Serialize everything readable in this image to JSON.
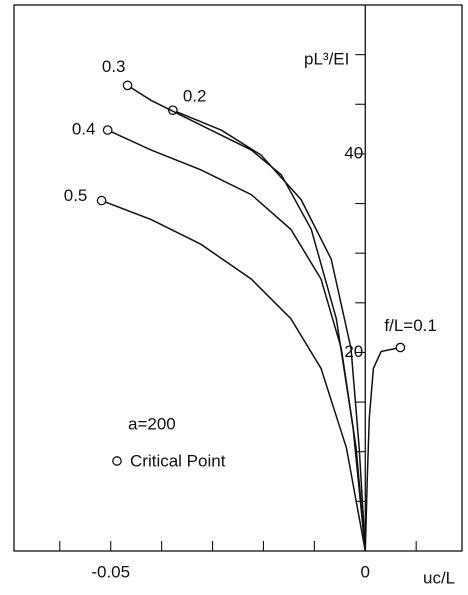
{
  "chart_data": {
    "type": "line",
    "ylabel": "pL³/EI",
    "xlabel": "uc/L",
    "annotation": "a=200",
    "legend_marker_label": "Critical Point",
    "xlim": [
      -0.069,
      0.019
    ],
    "ylim": [
      0,
      55
    ],
    "xticks": [
      -0.05,
      0
    ],
    "x_minor_ticks": [
      -0.06,
      -0.04,
      -0.03,
      -0.02,
      -0.01,
      0.01
    ],
    "yticks": [
      20,
      40
    ],
    "y_minor_ticks": [
      5,
      10,
      15,
      25,
      30,
      35,
      45,
      50
    ],
    "color": "#111111",
    "series": [
      {
        "name": "f/L=0.1",
        "x": [
          0,
          0.0004,
          0.0008,
          0.0016,
          0.0031,
          0.0069
        ],
        "values": [
          0,
          7.4,
          13.4,
          18.4,
          20.1,
          20.5
        ]
      },
      {
        "name": "0.2",
        "x": [
          0,
          -0.0012,
          -0.0028,
          -0.0067,
          -0.0126,
          -0.0205,
          -0.0283,
          -0.0378
        ],
        "values": [
          0,
          10.4,
          20.4,
          29.4,
          35.4,
          39.9,
          42.4,
          44.4
        ]
      },
      {
        "name": "0.3",
        "x": [
          0,
          -0.0024,
          -0.0057,
          -0.0106,
          -0.0165,
          -0.0224,
          -0.0323,
          -0.0421,
          -0.0467
        ],
        "values": [
          0,
          12.4,
          23.4,
          32.4,
          37.9,
          40.4,
          42.9,
          45.4,
          46.9
        ]
      },
      {
        "name": "0.4",
        "x": [
          0,
          -0.0018,
          -0.0047,
          -0.0087,
          -0.0146,
          -0.0224,
          -0.0323,
          -0.0421,
          -0.0506
        ],
        "values": [
          0,
          10.4,
          20.4,
          27.4,
          32.4,
          35.9,
          38.4,
          40.4,
          42.4
        ]
      },
      {
        "name": "0.5",
        "x": [
          0,
          -0.0037,
          -0.0087,
          -0.0146,
          -0.0224,
          -0.0323,
          -0.0421,
          -0.0518
        ],
        "values": [
          0,
          10.4,
          18.4,
          23.4,
          27.4,
          30.9,
          33.4,
          35.3
        ]
      }
    ]
  }
}
